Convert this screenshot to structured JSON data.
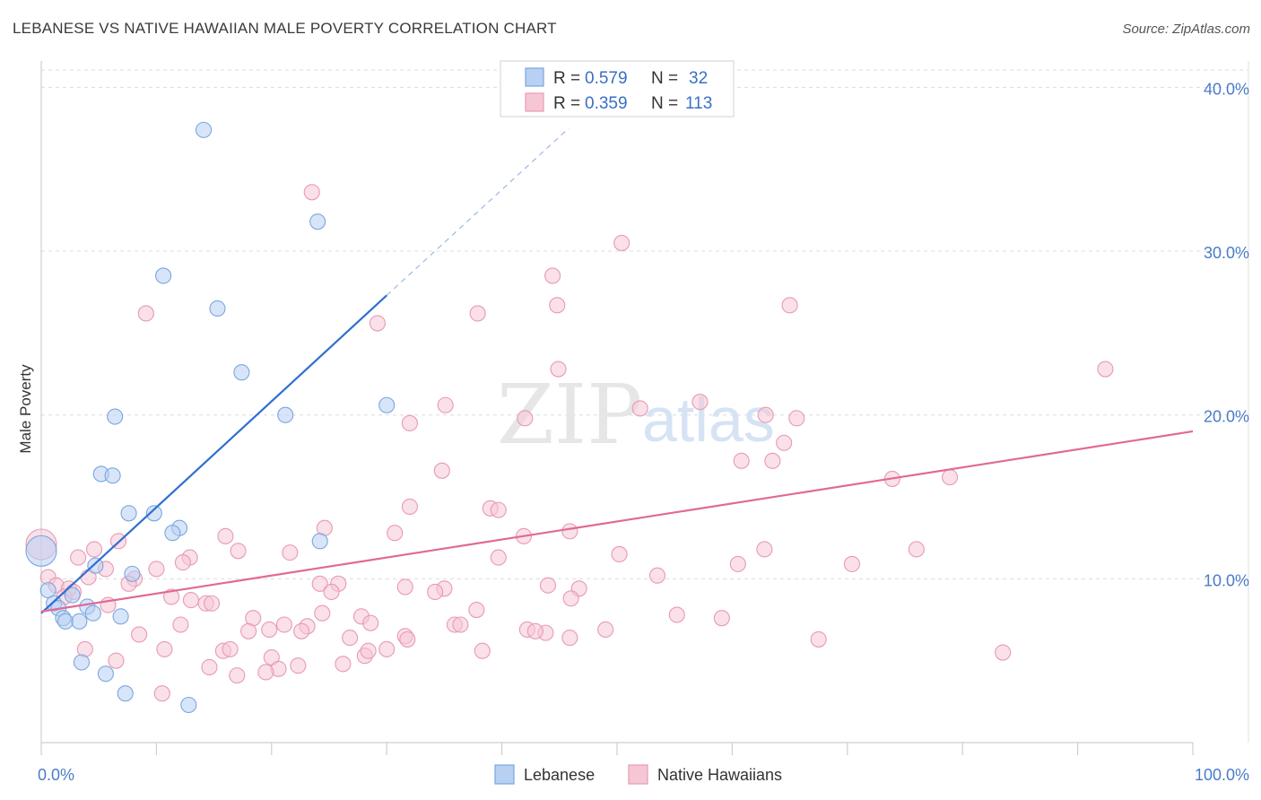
{
  "header": {
    "title": "LEBANESE VS NATIVE HAWAIIAN MALE POVERTY CORRELATION CHART",
    "source": "Source: ZipAtlas.com"
  },
  "watermark": {
    "zip": "ZIP",
    "atlas": "atlas"
  },
  "legend": {
    "r_label": "R =",
    "n_label": "N =",
    "entries": [
      {
        "r": "0.579",
        "n": "32"
      },
      {
        "r": "0.359",
        "n": "113"
      }
    ]
  },
  "chart_data": {
    "type": "scatter",
    "title": "LEBANESE VS NATIVE HAWAIIAN MALE POVERTY CORRELATION CHART",
    "xlabel": "",
    "ylabel": "Male Poverty",
    "xlim": [
      0,
      100
    ],
    "ylim": [
      0,
      41.5
    ],
    "x_tick_labels": [
      {
        "value": 0,
        "label": "0.0%"
      },
      {
        "value": 100,
        "label": "100.0%"
      }
    ],
    "y_tick_labels": [
      {
        "value": 10,
        "label": "10.0%"
      },
      {
        "value": 20,
        "label": "20.0%"
      },
      {
        "value": 30,
        "label": "30.0%"
      },
      {
        "value": 40,
        "label": "40.0%"
      }
    ],
    "grid": true,
    "legend_position": "top-center",
    "series": [
      {
        "name": "Lebanese",
        "color": "#7aa6e0",
        "fill": "#b8d0f2",
        "line_color": "#2f6fd0",
        "r": 0.579,
        "n": 32,
        "trend": {
          "x0": 0,
          "y0": 7.9,
          "x1": 30,
          "y1": 27.3,
          "dash_to_x": 45.8,
          "dash_to_y": 37.5
        },
        "points": [
          [
            14.1,
            37.4
          ],
          [
            24.0,
            31.8
          ],
          [
            10.6,
            28.5
          ],
          [
            15.3,
            26.5
          ],
          [
            17.4,
            22.6
          ],
          [
            30.0,
            20.6
          ],
          [
            21.2,
            20.0
          ],
          [
            6.4,
            19.9
          ],
          [
            5.2,
            16.4
          ],
          [
            6.2,
            16.3
          ],
          [
            7.6,
            14.0
          ],
          [
            9.8,
            14.0
          ],
          [
            12.0,
            13.1
          ],
          [
            11.4,
            12.8
          ],
          [
            24.2,
            12.3
          ],
          [
            0.0,
            11.7
          ],
          [
            7.9,
            10.3
          ],
          [
            4.7,
            10.8
          ],
          [
            0.6,
            9.3
          ],
          [
            2.7,
            9.0
          ],
          [
            1.1,
            8.5
          ],
          [
            1.5,
            8.2
          ],
          [
            4.0,
            8.3
          ],
          [
            4.5,
            7.9
          ],
          [
            6.9,
            7.7
          ],
          [
            1.9,
            7.6
          ],
          [
            2.1,
            7.4
          ],
          [
            3.3,
            7.4
          ],
          [
            3.5,
            4.9
          ],
          [
            5.6,
            4.2
          ],
          [
            7.3,
            3.0
          ],
          [
            12.8,
            2.3
          ]
        ]
      },
      {
        "name": "Native Hawaiians",
        "color": "#e89ab3",
        "fill": "#f6c6d5",
        "line_color": "#e06a92",
        "r": 0.359,
        "n": 113,
        "trend": {
          "x0": 0,
          "y0": 8.0,
          "x1": 100,
          "y1": 19.0
        },
        "points": [
          [
            23.5,
            33.6
          ],
          [
            50.4,
            30.5
          ],
          [
            44.4,
            28.5
          ],
          [
            9.1,
            26.2
          ],
          [
            37.9,
            26.2
          ],
          [
            44.8,
            26.7
          ],
          [
            65.0,
            26.7
          ],
          [
            29.2,
            25.6
          ],
          [
            44.9,
            22.8
          ],
          [
            92.4,
            22.8
          ],
          [
            57.2,
            20.8
          ],
          [
            35.1,
            20.6
          ],
          [
            52.0,
            20.4
          ],
          [
            42.0,
            19.8
          ],
          [
            62.9,
            20.0
          ],
          [
            65.6,
            19.8
          ],
          [
            32.0,
            19.5
          ],
          [
            64.5,
            18.3
          ],
          [
            60.8,
            17.2
          ],
          [
            63.5,
            17.2
          ],
          [
            34.8,
            16.6
          ],
          [
            73.9,
            16.1
          ],
          [
            78.9,
            16.2
          ],
          [
            32.0,
            14.4
          ],
          [
            39.0,
            14.3
          ],
          [
            39.7,
            14.2
          ],
          [
            24.6,
            13.1
          ],
          [
            30.7,
            12.8
          ],
          [
            45.9,
            12.9
          ],
          [
            41.9,
            12.6
          ],
          [
            16.0,
            12.6
          ],
          [
            6.7,
            12.3
          ],
          [
            0.0,
            12.1
          ],
          [
            4.6,
            11.8
          ],
          [
            3.2,
            11.3
          ],
          [
            17.1,
            11.7
          ],
          [
            21.6,
            11.6
          ],
          [
            39.7,
            11.3
          ],
          [
            50.2,
            11.5
          ],
          [
            62.8,
            11.8
          ],
          [
            76.0,
            11.8
          ],
          [
            12.9,
            11.3
          ],
          [
            12.3,
            11.0
          ],
          [
            10.0,
            10.6
          ],
          [
            5.6,
            10.6
          ],
          [
            60.5,
            10.9
          ],
          [
            70.4,
            10.9
          ],
          [
            4.1,
            10.1
          ],
          [
            8.1,
            10.0
          ],
          [
            53.5,
            10.2
          ],
          [
            0.6,
            10.1
          ],
          [
            1.3,
            9.6
          ],
          [
            7.6,
            9.7
          ],
          [
            2.4,
            9.4
          ],
          [
            24.2,
            9.7
          ],
          [
            25.8,
            9.7
          ],
          [
            31.6,
            9.5
          ],
          [
            35.0,
            9.4
          ],
          [
            46.7,
            9.4
          ],
          [
            44.0,
            9.6
          ],
          [
            25.2,
            9.2
          ],
          [
            34.2,
            9.2
          ],
          [
            2.0,
            8.9
          ],
          [
            11.3,
            8.9
          ],
          [
            13.0,
            8.7
          ],
          [
            14.3,
            8.5
          ],
          [
            14.8,
            8.5
          ],
          [
            46.0,
            8.8
          ],
          [
            5.8,
            8.4
          ],
          [
            37.8,
            8.1
          ],
          [
            24.4,
            7.9
          ],
          [
            27.8,
            7.7
          ],
          [
            18.4,
            7.6
          ],
          [
            59.1,
            7.6
          ],
          [
            55.2,
            7.8
          ],
          [
            12.1,
            7.2
          ],
          [
            21.1,
            7.2
          ],
          [
            28.6,
            7.3
          ],
          [
            35.9,
            7.2
          ],
          [
            36.4,
            7.2
          ],
          [
            18.0,
            6.8
          ],
          [
            19.8,
            6.9
          ],
          [
            23.1,
            7.1
          ],
          [
            42.2,
            6.9
          ],
          [
            43.8,
            6.7
          ],
          [
            45.9,
            6.4
          ],
          [
            42.9,
            6.8
          ],
          [
            8.5,
            6.6
          ],
          [
            31.6,
            6.5
          ],
          [
            26.8,
            6.4
          ],
          [
            31.8,
            6.3
          ],
          [
            67.5,
            6.3
          ],
          [
            3.8,
            5.7
          ],
          [
            10.7,
            5.7
          ],
          [
            15.8,
            5.6
          ],
          [
            16.4,
            5.7
          ],
          [
            30.0,
            5.7
          ],
          [
            38.3,
            5.6
          ],
          [
            83.5,
            5.5
          ],
          [
            20.0,
            5.2
          ],
          [
            28.1,
            5.3
          ],
          [
            6.5,
            5.0
          ],
          [
            14.6,
            4.6
          ],
          [
            22.3,
            4.7
          ],
          [
            26.2,
            4.8
          ],
          [
            20.6,
            4.5
          ],
          [
            19.5,
            4.3
          ],
          [
            17.0,
            4.1
          ],
          [
            10.5,
            3.0
          ],
          [
            28.4,
            5.6
          ],
          [
            2.8,
            9.2
          ],
          [
            22.6,
            6.8
          ],
          [
            49.0,
            6.9
          ]
        ]
      }
    ]
  }
}
